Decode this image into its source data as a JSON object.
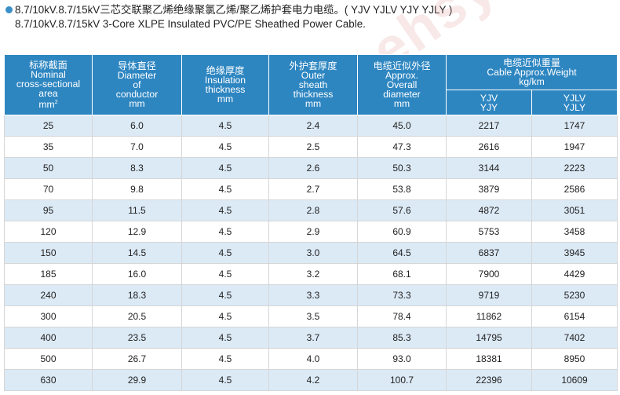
{
  "title": {
    "zh": "8.7/10kV.8.7/15kV三芯交联聚乙烯绝缘聚氯乙烯/聚乙烯护套电力电缆。( YJV  YJLV  YJY  YJLY )",
    "en": "8.7/10kV.8.7/15kV 3-Core XLPE Insulated PVC/PE Sheathed Power Cable."
  },
  "watermark": "www.ehsy.com",
  "headers": {
    "area": {
      "zh": "标称截面",
      "l1": "Nominal",
      "l2": "cross-sectional",
      "l3": "area",
      "l4": "mm",
      "sup": "2"
    },
    "diameter": {
      "zh": "导体直径",
      "l1": "Diameter",
      "l2": "of",
      "l3": "conductor",
      "l4": "mm"
    },
    "insulation": {
      "zh": "绝缘厚度",
      "l1": "Insulation",
      "l2": "thickness",
      "l3": "mm"
    },
    "sheath": {
      "zh": "外护套厚度",
      "l1": "Outer",
      "l2": "sheath",
      "l3": "thickness",
      "l4": "mm"
    },
    "overall": {
      "zh": "电缆近似外径",
      "l1": "Approx.",
      "l2": "Overall",
      "l3": "diameter",
      "l4": "mm"
    },
    "weight": {
      "zh": "电缆近似重量",
      "l1": "Cable Approx.Weight",
      "l2": "kg/km"
    },
    "sub1": {
      "l1": "YJV",
      "l2": "YJY"
    },
    "sub2": {
      "l1": "YJLV",
      "l2": "YJLY"
    }
  },
  "rows": [
    [
      "25",
      "6.0",
      "4.5",
      "2.4",
      "45.0",
      "2217",
      "1747"
    ],
    [
      "35",
      "7.0",
      "4.5",
      "2.5",
      "47.3",
      "2616",
      "1947"
    ],
    [
      "50",
      "8.3",
      "4.5",
      "2.6",
      "50.3",
      "3144",
      "2223"
    ],
    [
      "70",
      "9.8",
      "4.5",
      "2.7",
      "53.8",
      "3879",
      "2586"
    ],
    [
      "95",
      "11.5",
      "4.5",
      "2.8",
      "57.6",
      "4872",
      "3051"
    ],
    [
      "120",
      "12.9",
      "4.5",
      "2.9",
      "60.9",
      "5753",
      "3458"
    ],
    [
      "150",
      "14.5",
      "4.5",
      "3.0",
      "64.5",
      "6837",
      "3945"
    ],
    [
      "185",
      "16.0",
      "4.5",
      "3.2",
      "68.1",
      "7900",
      "4429"
    ],
    [
      "240",
      "18.3",
      "4.5",
      "3.3",
      "73.3",
      "9719",
      "5230"
    ],
    [
      "300",
      "20.5",
      "4.5",
      "3.5",
      "78.4",
      "11862",
      "6154"
    ],
    [
      "400",
      "23.5",
      "4.5",
      "3.7",
      "85.3",
      "14795",
      "7402"
    ],
    [
      "500",
      "26.7",
      "4.5",
      "4.0",
      "93.0",
      "18381",
      "8950"
    ],
    [
      "630",
      "29.9",
      "4.5",
      "4.2",
      "100.7",
      "22396",
      "10609"
    ]
  ]
}
